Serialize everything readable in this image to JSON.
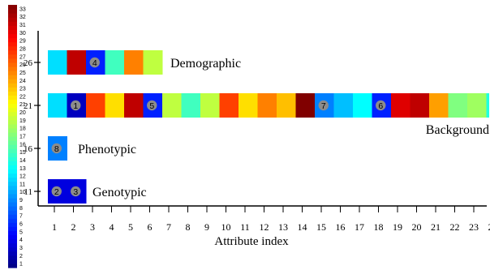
{
  "chart_data": {
    "type": "heatmap",
    "xlabel": "Attribute index",
    "x_ticks": [
      1,
      2,
      3,
      4,
      5,
      6,
      7,
      8,
      9,
      10,
      11,
      12,
      13,
      14,
      15,
      16,
      17,
      18,
      19,
      20,
      21,
      22,
      23,
      24
    ],
    "y_ticks": [
      11,
      16,
      21,
      26
    ],
    "colorbar": {
      "min": 1,
      "max": 33,
      "ticks": [
        1,
        2,
        3,
        4,
        5,
        6,
        7,
        8,
        9,
        10,
        11,
        12,
        13,
        14,
        15,
        16,
        17,
        18,
        19,
        20,
        21,
        22,
        23,
        24,
        25,
        26,
        27,
        28,
        29,
        30,
        31,
        32,
        33
      ]
    },
    "rows": [
      {
        "name": "Demographic",
        "y": 26,
        "x_start": 1,
        "values": [
          12,
          31,
          6,
          15,
          25,
          19
        ],
        "markers": [
          {
            "x": 3,
            "label": "4"
          }
        ]
      },
      {
        "name": "Background",
        "y": 21,
        "x_start": 1,
        "values": [
          12,
          3,
          27,
          22,
          31,
          6,
          19,
          15,
          19,
          27,
          22,
          25,
          23,
          33,
          9,
          11,
          13,
          6,
          30,
          31,
          24,
          17,
          18,
          14
        ],
        "markers": [
          {
            "x": 2,
            "label": "1"
          },
          {
            "x": 6,
            "label": "5"
          },
          {
            "x": 15,
            "label": "7"
          },
          {
            "x": 18,
            "label": "6"
          }
        ]
      },
      {
        "name": "Phenotypic",
        "y": 16,
        "x_start": 1,
        "values": [
          9
        ],
        "markers": [
          {
            "x": 1,
            "label": "8"
          }
        ]
      },
      {
        "name": "Genotypic",
        "y": 11,
        "x_start": 1,
        "values": [
          4,
          4
        ],
        "markers": [
          {
            "x": 1,
            "label": "2"
          },
          {
            "x": 2,
            "label": "3"
          }
        ]
      }
    ]
  }
}
